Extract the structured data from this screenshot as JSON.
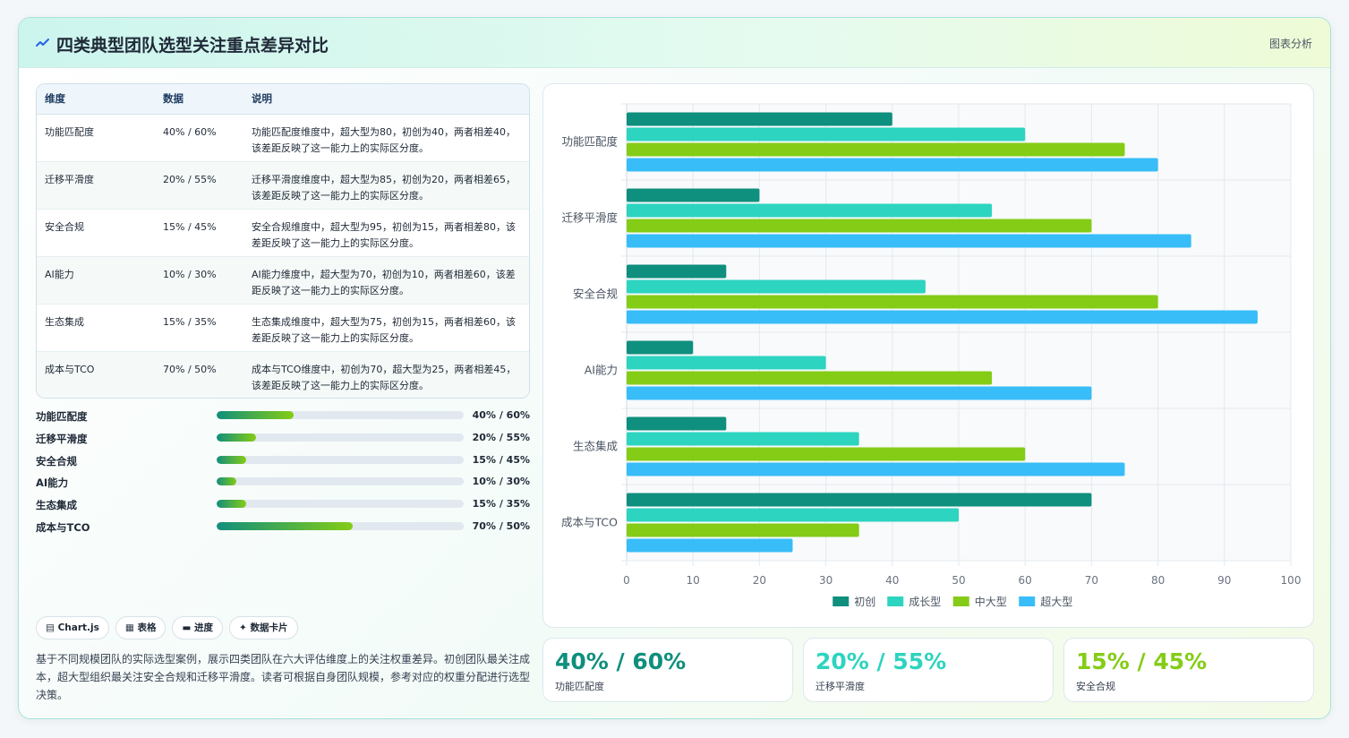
{
  "header": {
    "title": "四类典型团队选型关注重点差异对比",
    "tag": "图表分析"
  },
  "table": {
    "headers": [
      "维度",
      "数据",
      "说明"
    ],
    "rows": [
      {
        "dimension": "功能匹配度",
        "data": "40% / 60%",
        "note": "功能匹配度维度中，超大型为80，初创为40，两者相差40，该差距反映了这一能力上的实际区分度。"
      },
      {
        "dimension": "迁移平滑度",
        "data": "20% / 55%",
        "note": "迁移平滑度维度中，超大型为85，初创为20，两者相差65，该差距反映了这一能力上的实际区分度。"
      },
      {
        "dimension": "安全合规",
        "data": "15% / 45%",
        "note": "安全合规维度中，超大型为95，初创为15，两者相差80，该差距反映了这一能力上的实际区分度。"
      },
      {
        "dimension": "AI能力",
        "data": "10% / 30%",
        "note": "AI能力维度中，超大型为70，初创为10，两者相差60，该差距反映了这一能力上的实际区分度。"
      },
      {
        "dimension": "生态集成",
        "data": "15% / 35%",
        "note": "生态集成维度中，超大型为75，初创为15，两者相差60，该差距反映了这一能力上的实际区分度。"
      },
      {
        "dimension": "成本与TCO",
        "data": "70% / 50%",
        "note": "成本与TCO维度中，初创为70，超大型为25，两者相差45，该差距反映了这一能力上的实际区分度。"
      }
    ]
  },
  "progress": [
    {
      "label": "功能匹配度",
      "value": "40% / 60%",
      "fill": 0.31
    },
    {
      "label": "迁移平滑度",
      "value": "20% / 55%",
      "fill": 0.16
    },
    {
      "label": "安全合规",
      "value": "15% / 45%",
      "fill": 0.12
    },
    {
      "label": "AI能力",
      "value": "10% / 30%",
      "fill": 0.08
    },
    {
      "label": "生态集成",
      "value": "15% / 35%",
      "fill": 0.12
    },
    {
      "label": "成本与TCO",
      "value": "70% / 50%",
      "fill": 0.55
    }
  ],
  "chips": [
    "▤ Chart.js",
    "▦ 表格",
    "▬ 进度",
    "✦ 数据卡片"
  ],
  "description": "基于不同规模团队的实际选型案例，展示四类团队在六大评估维度上的关注权重差异。初创团队最关注成本，超大型组织最关注安全合规和迁移平滑度。读者可根据自身团队规模，参考对应的权重分配进行选型决策。",
  "kpis": [
    {
      "value": "40% / 60%",
      "label": "功能匹配度",
      "color": "#0f8f7d"
    },
    {
      "value": "20% / 55%",
      "label": "迁移平滑度",
      "color": "#2dd4bf"
    },
    {
      "value": "15% / 45%",
      "label": "安全合规",
      "color": "#84cc16"
    }
  ],
  "colors": {
    "accent": "#0f8f7d",
    "teal": "#2dd4bf",
    "lime": "#84cc16",
    "sky": "#38bdf8"
  },
  "chart_data": {
    "type": "bar",
    "orientation": "horizontal",
    "categories": [
      "功能匹配度",
      "迁移平滑度",
      "安全合规",
      "AI能力",
      "生态集成",
      "成本与TCO"
    ],
    "series": [
      {
        "name": "初创",
        "color": "#0f8f7d",
        "values": [
          40,
          20,
          15,
          10,
          15,
          70
        ]
      },
      {
        "name": "成长型",
        "color": "#2dd4bf",
        "values": [
          60,
          55,
          45,
          30,
          35,
          50
        ]
      },
      {
        "name": "中大型",
        "color": "#84cc16",
        "values": [
          75,
          70,
          80,
          55,
          60,
          35
        ]
      },
      {
        "name": "超大型",
        "color": "#38bdf8",
        "values": [
          80,
          85,
          95,
          70,
          75,
          25
        ]
      }
    ],
    "xlim": [
      0,
      100
    ],
    "xticks": [
      0,
      10,
      20,
      30,
      40,
      50,
      60,
      70,
      80,
      90,
      100
    ],
    "grid": true,
    "legend": "bottom",
    "title": "",
    "xlabel": "",
    "ylabel": ""
  }
}
